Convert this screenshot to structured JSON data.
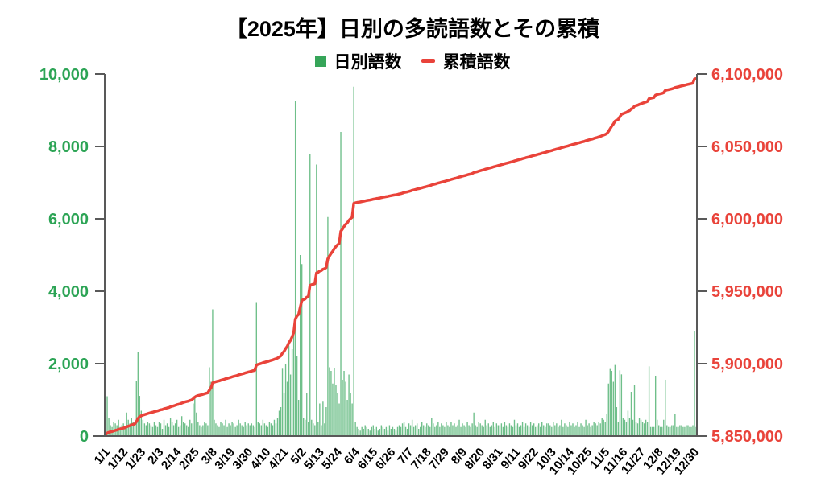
{
  "title": "【2025年】日別の多読語数とその累積",
  "legend": {
    "daily_label": "日別語数",
    "cumulative_label": "累積語数"
  },
  "colors": {
    "green_text": "#2ca455",
    "legend_green": "#36a559",
    "bar_fill": "#6fbf8a",
    "red": "#e9433a",
    "axis_gray": "#595959",
    "label_black": "#000000"
  },
  "chart_data": {
    "type": "bar+line dual-axis",
    "x_start_label": "1/1",
    "x_tick_interval_days": 11,
    "x_tick_labels": [
      "1/1",
      "1/12",
      "1/23",
      "2/3",
      "2/14",
      "2/25",
      "3/8",
      "3/19",
      "3/30",
      "4/10",
      "4/21",
      "5/2",
      "5/13",
      "5/24",
      "6/4",
      "6/15",
      "6/26",
      "7/7",
      "7/18",
      "7/29",
      "8/9",
      "8/20",
      "8/31",
      "9/11",
      "9/22",
      "10/3",
      "10/14",
      "10/25",
      "11/5",
      "11/16",
      "11/27",
      "12/8",
      "12/19",
      "12/30"
    ],
    "left_axis": {
      "series": "日別語数",
      "min": 0,
      "max": 10000,
      "tick_values": [
        0,
        2000,
        4000,
        6000,
        8000,
        10000
      ],
      "tick_labels": [
        "0",
        "2,000",
        "4,000",
        "6,000",
        "8,000",
        "10,000"
      ]
    },
    "right_axis": {
      "series": "累積語数",
      "min": 5850000,
      "max": 6100000,
      "tick_values": [
        5850000,
        5900000,
        5950000,
        6000000,
        6050000,
        6100000
      ],
      "tick_labels": [
        "5,850,000",
        "5,900,000",
        "5,950,000",
        "6,000,000",
        "6,050,000",
        "6,100,000"
      ]
    },
    "cumulative_base": 5850800,
    "daily_values": [
      200,
      1100,
      500,
      300,
      250,
      400,
      350,
      300,
      450,
      250,
      300,
      350,
      200,
      650,
      450,
      350,
      500,
      400,
      300,
      1520,
      2320,
      1110,
      700,
      450,
      350,
      300,
      400,
      350,
      300,
      250,
      400,
      300,
      250,
      400,
      350,
      200,
      450,
      300,
      350,
      250,
      500,
      400,
      300,
      350,
      450,
      250,
      300,
      550,
      400,
      350,
      300,
      250,
      450,
      350,
      900,
      1100,
      650,
      400,
      300,
      250,
      300,
      400,
      350,
      300,
      1900,
      1500,
      3500,
      450,
      350,
      300,
      250,
      400,
      350,
      300,
      450,
      250,
      350,
      300,
      400,
      350,
      250,
      300,
      450,
      350,
      300,
      250,
      400,
      300,
      350,
      300,
      350,
      300,
      250,
      3700,
      400,
      350,
      300,
      450,
      350,
      300,
      250,
      400,
      350,
      300,
      450,
      350,
      500,
      700,
      800,
      1860,
      1200,
      2000,
      1500,
      2500,
      1700,
      2400,
      3000,
      9250,
      2200,
      1000,
      5000,
      4750,
      500,
      450,
      1200,
      400,
      7800,
      450,
      350,
      300,
      7500,
      400,
      900,
      300,
      950,
      350,
      800,
      6050,
      1900,
      1800,
      1450,
      1889,
      1400,
      1200,
      900,
      8400,
      1556,
      1800,
      1500,
      1000,
      1700,
      1200,
      900,
      9650,
      400,
      250,
      200,
      150,
      250,
      200,
      300,
      250,
      200,
      150,
      250,
      300,
      200,
      250,
      150,
      200,
      300,
      250,
      200,
      250,
      150,
      300,
      200,
      250,
      200,
      150,
      250,
      300,
      250,
      350,
      400,
      250,
      200,
      350,
      300,
      450,
      250,
      300,
      350,
      200,
      250,
      400,
      300,
      250,
      350,
      300,
      250,
      500,
      350,
      250,
      300,
      400,
      250,
      350,
      300,
      250,
      400,
      300,
      250,
      400,
      300,
      350,
      250,
      300,
      450,
      250,
      350,
      300,
      250,
      400,
      300,
      250,
      350,
      650,
      300,
      250,
      400,
      350,
      300,
      250,
      450,
      300,
      350,
      250,
      300,
      400,
      250,
      350,
      300,
      300,
      350,
      250,
      400,
      300,
      250,
      350,
      300,
      250,
      450,
      300,
      350,
      250,
      300,
      400,
      250,
      350,
      300,
      250,
      400,
      300,
      350,
      250,
      300,
      350,
      250,
      400,
      300,
      250,
      350,
      350,
      300,
      250,
      400,
      300,
      350,
      250,
      300,
      450,
      250,
      350,
      300,
      250,
      400,
      300,
      350,
      250,
      300,
      400,
      250,
      350,
      300,
      250,
      450,
      300,
      350,
      250,
      300,
      400,
      350,
      300,
      400,
      350,
      500,
      450,
      400,
      600,
      1450,
      1853,
      1800,
      1500,
      1964,
      800,
      400,
      1815,
      1704,
      500,
      450,
      400,
      700,
      500,
      1222,
      450,
      1409,
      400,
      350,
      500,
      450,
      400,
      350,
      450,
      400,
      1926,
      250,
      250,
      250,
      1667,
      450,
      300,
      250,
      250,
      450,
      1556,
      300,
      250,
      250,
      300,
      300,
      600,
      250,
      250,
      300,
      300,
      250,
      250,
      300,
      300,
      250,
      250,
      300,
      2900,
      250
    ]
  }
}
